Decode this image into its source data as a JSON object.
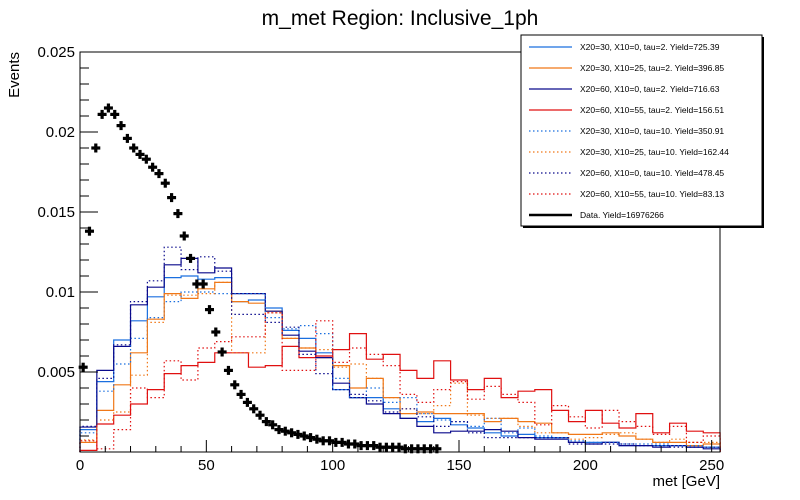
{
  "chart_data": {
    "type": "bar",
    "style": "step-histogram",
    "title": "m_met Region: Inclusive_1ph",
    "xlabel": "met [GeV]",
    "ylabel": "Events",
    "xlim": [
      0,
      253.3
    ],
    "ylim": [
      0,
      0.025
    ],
    "x_ticks": [
      0,
      50,
      100,
      150,
      200,
      250
    ],
    "x_tick_labels": [
      "0",
      "50",
      "100",
      "150",
      "200",
      "250"
    ],
    "y_ticks": [
      0.005,
      0.01,
      0.015,
      0.02,
      0.025
    ],
    "y_tick_labels": [
      "0.005",
      "0.01",
      "0.015",
      "0.02",
      "0.025"
    ],
    "grid": false,
    "legend_position": "top-right",
    "bin_width": 6.667,
    "series": [
      {
        "name": "X20=30, X10=0, tau=2. Yield=725.39",
        "color": "#1a6fdf",
        "dash": "solid",
        "values": [
          0.0014,
          0.0044,
          0.007,
          0.0082,
          0.0097,
          0.0109,
          0.011,
          0.0108,
          0.0109,
          0.0094,
          0.0095,
          0.009,
          0.0076,
          0.0071,
          0.0062,
          0.0039,
          0.0034,
          0.0034,
          0.0027,
          0.0021,
          0.0019,
          0.0021,
          0.0017,
          0.0015,
          0.0012,
          0.001,
          0.0011,
          0.0009,
          0.0009,
          0.0006,
          0.0006,
          0.0006,
          0.0004,
          0.0004,
          0.0004,
          0.0004,
          0.0003,
          0.0003
        ]
      },
      {
        "name": "X20=30, X10=25, tau=2. Yield=396.85",
        "color": "#f07818",
        "dash": "solid",
        "values": [
          0.0006,
          0.0026,
          0.0042,
          0.0062,
          0.0083,
          0.0099,
          0.0096,
          0.0102,
          0.0106,
          0.0094,
          0.0093,
          0.0088,
          0.0071,
          0.0065,
          0.0059,
          0.0054,
          0.004,
          0.0046,
          0.0034,
          0.0024,
          0.0025,
          0.0024,
          0.0024,
          0.0024,
          0.0019,
          0.0021,
          0.0019,
          0.0018,
          0.0012,
          0.0011,
          0.0011,
          0.0012,
          0.001,
          0.0008,
          0.0006,
          0.0006,
          0.0004,
          0.0005
        ]
      },
      {
        "name": "X20=60, X10=0, tau=2. Yield=716.63",
        "color": "#0a0a8c",
        "dash": "solid",
        "values": [
          0.00156,
          0.0051,
          0.0066,
          0.0092,
          0.0103,
          0.0117,
          0.0121,
          0.0112,
          0.0115,
          0.0099,
          0.0099,
          0.0088,
          0.0073,
          0.0063,
          0.0059,
          0.0043,
          0.0034,
          0.003,
          0.0024,
          0.0021,
          0.0016,
          0.0012,
          0.0013,
          0.0013,
          0.0014,
          0.0013,
          0.0009,
          0.0008,
          0.0008,
          0.0006,
          0.0005,
          0.0006,
          0.0004,
          0.0004,
          0.0003,
          0.0004,
          0.0003,
          0.0002
        ]
      },
      {
        "name": "X20=60, X10=55, tau=2. Yield=156.51",
        "color": "#e01010",
        "dash": "solid",
        "values": [
          0.0001,
          0.00175,
          0.0023,
          0.003,
          0.0039,
          0.0049,
          0.0054,
          0.0056,
          0.0062,
          0.0062,
          0.0053,
          0.0054,
          0.0066,
          0.0059,
          0.006,
          0.0064,
          0.0074,
          0.0058,
          0.0061,
          0.0051,
          0.0046,
          0.0057,
          0.0045,
          0.0039,
          0.0046,
          0.0034,
          0.0038,
          0.0039,
          0.0026,
          0.0019,
          0.0026,
          0.0018,
          0.0015,
          0.0024,
          0.0012,
          0.0018,
          0.0013,
          0.0012
        ]
      },
      {
        "name": "X20=30, X10=0, tau=10. Yield=350.91",
        "color": "#1a6fdf",
        "dash": "dotted",
        "values": [
          0.0012,
          0.0038,
          0.0055,
          0.0071,
          0.0084,
          0.0094,
          0.01,
          0.01,
          0.0099,
          0.0099,
          0.0099,
          0.0084,
          0.0077,
          0.0079,
          0.0074,
          0.0046,
          0.0034,
          0.004,
          0.0031,
          0.0034,
          0.0024,
          0.002,
          0.0019,
          0.0016,
          0.0021,
          0.0012,
          0.0015,
          0.001,
          0.0009,
          0.0007,
          0.0006,
          0.0006,
          0.0005,
          0.0005,
          0.0005,
          0.0004,
          0.0004,
          0.0003
        ]
      },
      {
        "name": "X20=30, X10=25, tau=10. Yield=162.44",
        "color": "#f07818",
        "dash": "dotted",
        "values": [
          0.00075,
          0.002,
          0.0025,
          0.0048,
          0.0081,
          0.0098,
          0.0098,
          0.0099,
          0.0106,
          0.0062,
          0.0062,
          0.0087,
          0.0071,
          0.0065,
          0.0064,
          0.0053,
          0.0055,
          0.0046,
          0.0034,
          0.0027,
          0.0024,
          0.0029,
          0.0043,
          0.0023,
          0.0021,
          0.0021,
          0.0016,
          0.0012,
          0.0012,
          0.0008,
          0.0009,
          0.0011,
          0.0012,
          0.0008,
          0.0006,
          0.0008,
          0.0006,
          0.0006
        ]
      },
      {
        "name": "X20=60, X10=0, tau=10. Yield=478.45",
        "color": "#0a0a8c",
        "dash": "dotted",
        "values": [
          0.0016,
          0.0046,
          0.0067,
          0.0094,
          0.0107,
          0.0128,
          0.0114,
          0.0122,
          0.0113,
          0.0086,
          0.0086,
          0.0081,
          0.0078,
          0.0061,
          0.0049,
          0.0039,
          0.0036,
          0.0032,
          0.0025,
          0.0027,
          0.0022,
          0.0016,
          0.0019,
          0.0012,
          0.0009,
          0.0009,
          0.0009,
          0.0009,
          0.0009,
          0.0005,
          0.0005,
          0.0005,
          0.0005,
          0.0004,
          0.0004,
          0.0003,
          0.0003,
          0.0003
        ]
      },
      {
        "name": "X20=60, X10=55, tau=10. Yield=83.13",
        "color": "#e01010",
        "dash": "dotted",
        "values": [
          0.0007,
          0.0002,
          0.0014,
          0.004,
          0.0034,
          0.0057,
          0.0045,
          0.0065,
          0.0069,
          0.0072,
          0.0072,
          0.0087,
          0.0051,
          0.0051,
          0.0082,
          0.0056,
          0.0065,
          0.0061,
          0.0054,
          0.0036,
          0.0031,
          0.0039,
          0.0044,
          0.0033,
          0.0041,
          0.0036,
          0.0031,
          0.0017,
          0.0029,
          0.0022,
          0.0015,
          0.0026,
          0.0019,
          0.0016,
          0.0011,
          0.0016,
          0.0006,
          0.001
        ]
      }
    ],
    "data_points": {
      "name": "Data. Yield=16976266",
      "color": "#000000",
      "x": [
        1.25,
        3.75,
        6.25,
        8.75,
        11.25,
        13.75,
        16.25,
        18.75,
        21.25,
        23.75,
        26.25,
        28.75,
        31.25,
        33.75,
        36.25,
        38.75,
        41.25,
        43.75,
        46.25,
        48.75,
        51.25,
        53.75,
        56.25,
        58.75,
        61.25,
        63.75,
        66.25,
        68.75,
        71.25,
        73.75,
        76.25,
        78.75,
        81.25,
        83.75,
        86.25,
        88.75,
        91.25,
        93.75,
        96.25,
        98.75,
        101.25,
        103.75,
        106.25,
        108.75,
        111.25,
        113.75,
        116.25,
        118.75,
        121.25,
        123.75,
        126.25,
        128.75,
        131.25,
        133.75,
        136.25,
        138.75,
        141.25
      ],
      "y": [
        0.0053,
        0.0138,
        0.019,
        0.0211,
        0.0215,
        0.0211,
        0.0204,
        0.0196,
        0.019,
        0.0186,
        0.0183,
        0.0178,
        0.0174,
        0.0168,
        0.0159,
        0.0149,
        0.0135,
        0.0121,
        0.0105,
        0.0105,
        0.0089,
        0.0075,
        0.00625,
        0.0051,
        0.0042,
        0.0036,
        0.0031,
        0.0027,
        0.0023,
        0.0019,
        0.0017,
        0.0014,
        0.0013,
        0.0012,
        0.0011,
        0.001,
        0.0009,
        0.0008,
        0.0007,
        0.0007,
        0.0006,
        0.0006,
        0.0005,
        0.0005,
        0.0004,
        0.0004,
        0.0004,
        0.0003,
        0.0003,
        0.0003,
        0.0003,
        0.0002,
        0.0002,
        0.0002,
        0.0002,
        0.0002,
        0.0002
      ]
    }
  }
}
